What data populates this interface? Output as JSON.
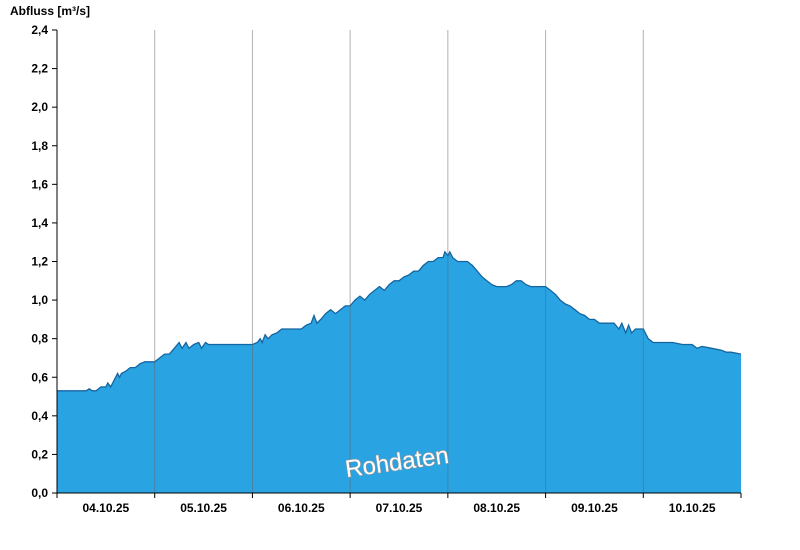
{
  "watermark": "Rohdaten",
  "colors": {
    "area_fill": "#29A3E2",
    "area_edge": "#1565A0",
    "axis": "#000000",
    "grid": "#666666",
    "watermark_fill": "#ffffff",
    "watermark_outline": "#999999"
  },
  "chart_data": {
    "type": "area",
    "title": "Abfluss [m³/s]",
    "xlabel": "",
    "ylabel": "Abfluss [m³/s]",
    "ylim": [
      0,
      2.4
    ],
    "ytick_step": 0.2,
    "ytick_labels": [
      "0,0",
      "0,2",
      "0,4",
      "0,6",
      "0,8",
      "1,0",
      "1,2",
      "1,4",
      "1,6",
      "1,8",
      "2,0",
      "2,2",
      "2,4"
    ],
    "x_labels": [
      "04.10.25",
      "05.10.25",
      "06.10.25",
      "07.10.25",
      "08.10.25",
      "09.10.25",
      "10.10.25"
    ],
    "x_days": 7,
    "grid": "vertical-day-boundaries",
    "legend": "none",
    "points": [
      [
        0.0,
        0.53
      ],
      [
        0.3,
        0.53
      ],
      [
        0.33,
        0.54
      ],
      [
        0.36,
        0.53
      ],
      [
        0.4,
        0.53
      ],
      [
        0.45,
        0.55
      ],
      [
        0.5,
        0.55
      ],
      [
        0.52,
        0.57
      ],
      [
        0.55,
        0.55
      ],
      [
        0.58,
        0.58
      ],
      [
        0.6,
        0.6
      ],
      [
        0.62,
        0.62
      ],
      [
        0.64,
        0.6
      ],
      [
        0.66,
        0.62
      ],
      [
        0.7,
        0.63
      ],
      [
        0.75,
        0.65
      ],
      [
        0.8,
        0.65
      ],
      [
        0.85,
        0.67
      ],
      [
        0.9,
        0.68
      ],
      [
        1.0,
        0.68
      ],
      [
        1.05,
        0.7
      ],
      [
        1.1,
        0.72
      ],
      [
        1.15,
        0.72
      ],
      [
        1.2,
        0.75
      ],
      [
        1.25,
        0.78
      ],
      [
        1.28,
        0.75
      ],
      [
        1.32,
        0.78
      ],
      [
        1.35,
        0.75
      ],
      [
        1.4,
        0.77
      ],
      [
        1.45,
        0.78
      ],
      [
        1.48,
        0.75
      ],
      [
        1.52,
        0.78
      ],
      [
        1.55,
        0.77
      ],
      [
        1.6,
        0.77
      ],
      [
        1.7,
        0.77
      ],
      [
        1.8,
        0.77
      ],
      [
        1.9,
        0.77
      ],
      [
        2.0,
        0.77
      ],
      [
        2.05,
        0.78
      ],
      [
        2.08,
        0.8
      ],
      [
        2.1,
        0.78
      ],
      [
        2.13,
        0.82
      ],
      [
        2.16,
        0.8
      ],
      [
        2.2,
        0.82
      ],
      [
        2.25,
        0.83
      ],
      [
        2.3,
        0.85
      ],
      [
        2.4,
        0.85
      ],
      [
        2.5,
        0.85
      ],
      [
        2.55,
        0.87
      ],
      [
        2.6,
        0.88
      ],
      [
        2.63,
        0.92
      ],
      [
        2.66,
        0.88
      ],
      [
        2.7,
        0.9
      ],
      [
        2.75,
        0.93
      ],
      [
        2.8,
        0.95
      ],
      [
        2.85,
        0.93
      ],
      [
        2.9,
        0.95
      ],
      [
        2.95,
        0.97
      ],
      [
        3.0,
        0.97
      ],
      [
        3.05,
        1.0
      ],
      [
        3.1,
        1.02
      ],
      [
        3.15,
        1.0
      ],
      [
        3.2,
        1.03
      ],
      [
        3.25,
        1.05
      ],
      [
        3.3,
        1.07
      ],
      [
        3.35,
        1.05
      ],
      [
        3.4,
        1.08
      ],
      [
        3.45,
        1.1
      ],
      [
        3.5,
        1.1
      ],
      [
        3.55,
        1.12
      ],
      [
        3.6,
        1.13
      ],
      [
        3.65,
        1.15
      ],
      [
        3.7,
        1.15
      ],
      [
        3.75,
        1.18
      ],
      [
        3.8,
        1.2
      ],
      [
        3.85,
        1.2
      ],
      [
        3.9,
        1.22
      ],
      [
        3.95,
        1.22
      ],
      [
        3.97,
        1.25
      ],
      [
        4.0,
        1.23
      ],
      [
        4.02,
        1.25
      ],
      [
        4.05,
        1.22
      ],
      [
        4.1,
        1.2
      ],
      [
        4.15,
        1.2
      ],
      [
        4.2,
        1.2
      ],
      [
        4.25,
        1.18
      ],
      [
        4.3,
        1.15
      ],
      [
        4.35,
        1.12
      ],
      [
        4.4,
        1.1
      ],
      [
        4.45,
        1.08
      ],
      [
        4.5,
        1.07
      ],
      [
        4.55,
        1.07
      ],
      [
        4.6,
        1.07
      ],
      [
        4.65,
        1.08
      ],
      [
        4.7,
        1.1
      ],
      [
        4.75,
        1.1
      ],
      [
        4.8,
        1.08
      ],
      [
        4.85,
        1.07
      ],
      [
        4.9,
        1.07
      ],
      [
        5.0,
        1.07
      ],
      [
        5.05,
        1.05
      ],
      [
        5.1,
        1.03
      ],
      [
        5.15,
        1.0
      ],
      [
        5.2,
        0.98
      ],
      [
        5.25,
        0.97
      ],
      [
        5.3,
        0.95
      ],
      [
        5.35,
        0.93
      ],
      [
        5.4,
        0.92
      ],
      [
        5.45,
        0.9
      ],
      [
        5.5,
        0.9
      ],
      [
        5.55,
        0.88
      ],
      [
        5.6,
        0.88
      ],
      [
        5.7,
        0.88
      ],
      [
        5.75,
        0.85
      ],
      [
        5.78,
        0.88
      ],
      [
        5.82,
        0.83
      ],
      [
        5.85,
        0.87
      ],
      [
        5.88,
        0.83
      ],
      [
        5.92,
        0.85
      ],
      [
        6.0,
        0.85
      ],
      [
        6.05,
        0.8
      ],
      [
        6.1,
        0.78
      ],
      [
        6.2,
        0.78
      ],
      [
        6.3,
        0.78
      ],
      [
        6.4,
        0.77
      ],
      [
        6.5,
        0.77
      ],
      [
        6.55,
        0.75
      ],
      [
        6.6,
        0.76
      ],
      [
        6.7,
        0.75
      ],
      [
        6.8,
        0.74
      ],
      [
        6.85,
        0.73
      ],
      [
        6.9,
        0.73
      ],
      [
        7.0,
        0.72
      ]
    ]
  }
}
